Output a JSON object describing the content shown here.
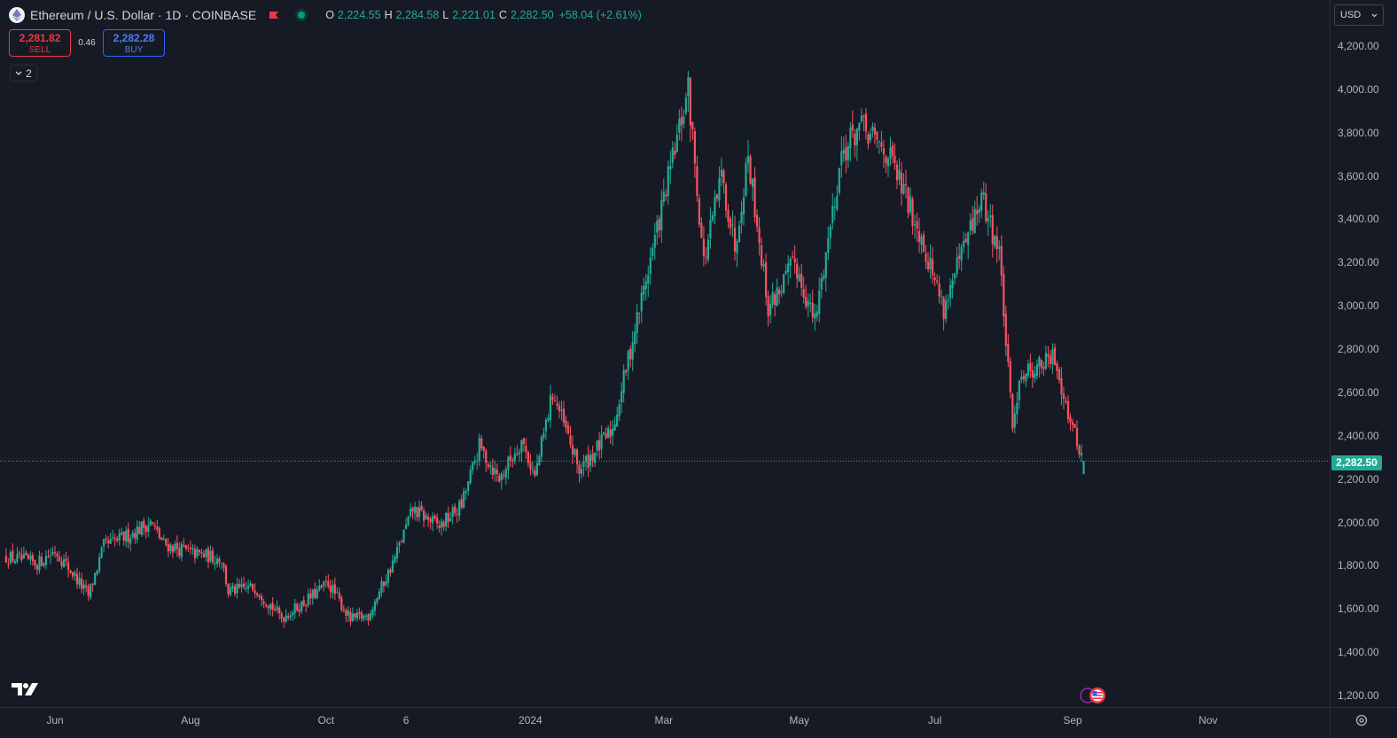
{
  "header": {
    "symbol_title": "Ethereum / U.S. Dollar · 1D · COINBASE",
    "symbol_icon": "ethereum-icon",
    "ohlc": {
      "o_label": "O",
      "o_value": "2,224.55",
      "h_label": "H",
      "h_value": "2,284.58",
      "l_label": "L",
      "l_value": "2,221.01",
      "c_label": "C",
      "c_value": "2,282.50",
      "change": "+58.04 (+2.61%)"
    }
  },
  "trade": {
    "sell_price": "2,281.82",
    "sell_label": "SELL",
    "spread": "0.46",
    "buy_price": "2,282.28",
    "buy_label": "BUY"
  },
  "indicators_toggle": {
    "count": "2"
  },
  "currency": "USD",
  "last_price_label": "2,282.50",
  "colors": {
    "background": "#161a25",
    "up": "#22ab94",
    "down": "#f7525f",
    "sell": "#f23645",
    "buy": "#2962ff",
    "grid": "#2a2e39"
  },
  "chart_data": {
    "type": "candlestick",
    "title": "Ethereum / U.S. Dollar · 1D · COINBASE",
    "xlabel": "",
    "ylabel": "",
    "currency": "USD",
    "ylim": [
      1150,
      4300
    ],
    "x_start": "2023-05-10",
    "x_end": "2024-11-30",
    "last_close": 2282.5,
    "y_ticks": [
      1200,
      1400,
      1600,
      1800,
      2000,
      2200,
      2400,
      2600,
      2800,
      3000,
      3200,
      3400,
      3600,
      3800,
      4000,
      4200
    ],
    "y_tick_labels": [
      "1,200.00",
      "1,400.00",
      "1,600.00",
      "1,800.00",
      "2,000.00",
      "2,200.00",
      "2,400.00",
      "2,600.00",
      "2,800.00",
      "3,000.00",
      "3,200.00",
      "3,400.00",
      "3,600.00",
      "3,800.00",
      "4,000.00",
      "4,200.00"
    ],
    "x_ticks": [
      {
        "date": "2023-06-01",
        "label": "Jun"
      },
      {
        "date": "2023-08-01",
        "label": "Aug"
      },
      {
        "date": "2023-10-01",
        "label": "Oct"
      },
      {
        "date": "2023-11-06",
        "label": "6"
      },
      {
        "date": "2024-01-01",
        "label": "2024"
      },
      {
        "date": "2024-03-01",
        "label": "Mar"
      },
      {
        "date": "2024-05-01",
        "label": "May"
      },
      {
        "date": "2024-07-01",
        "label": "Jul"
      },
      {
        "date": "2024-09-01",
        "label": "Sep"
      },
      {
        "date": "2024-11-01",
        "label": "Nov"
      }
    ],
    "grid": false,
    "legend": "none",
    "price_path": [
      {
        "date": "2023-05-10",
        "close": 1840
      },
      {
        "date": "2023-05-24",
        "close": 1810
      },
      {
        "date": "2023-06-01",
        "close": 1870
      },
      {
        "date": "2023-06-10",
        "close": 1750
      },
      {
        "date": "2023-06-16",
        "close": 1660
      },
      {
        "date": "2023-06-23",
        "close": 1890
      },
      {
        "date": "2023-07-04",
        "close": 1940
      },
      {
        "date": "2023-07-14",
        "close": 2000
      },
      {
        "date": "2023-07-20",
        "close": 1900
      },
      {
        "date": "2023-08-01",
        "close": 1860
      },
      {
        "date": "2023-08-15",
        "close": 1830
      },
      {
        "date": "2023-08-18",
        "close": 1680
      },
      {
        "date": "2023-08-30",
        "close": 1700
      },
      {
        "date": "2023-09-11",
        "close": 1560
      },
      {
        "date": "2023-09-20",
        "close": 1620
      },
      {
        "date": "2023-10-02",
        "close": 1720
      },
      {
        "date": "2023-10-12",
        "close": 1550
      },
      {
        "date": "2023-10-20",
        "close": 1570
      },
      {
        "date": "2023-10-31",
        "close": 1810
      },
      {
        "date": "2023-11-09",
        "close": 2060
      },
      {
        "date": "2023-11-21",
        "close": 1980
      },
      {
        "date": "2023-12-01",
        "close": 2080
      },
      {
        "date": "2023-12-09",
        "close": 2350
      },
      {
        "date": "2023-12-18",
        "close": 2200
      },
      {
        "date": "2023-12-28",
        "close": 2380
      },
      {
        "date": "2024-01-03",
        "close": 2210
      },
      {
        "date": "2024-01-11",
        "close": 2600
      },
      {
        "date": "2024-01-23",
        "close": 2240
      },
      {
        "date": "2024-02-07",
        "close": 2430
      },
      {
        "date": "2024-02-15",
        "close": 2800
      },
      {
        "date": "2024-02-28",
        "close": 3400
      },
      {
        "date": "2024-03-12",
        "close": 4000
      },
      {
        "date": "2024-03-19",
        "close": 3200
      },
      {
        "date": "2024-03-27",
        "close": 3600
      },
      {
        "date": "2024-04-02",
        "close": 3280
      },
      {
        "date": "2024-04-08",
        "close": 3700
      },
      {
        "date": "2024-04-17",
        "close": 2990
      },
      {
        "date": "2024-04-29",
        "close": 3200
      },
      {
        "date": "2024-05-08",
        "close": 2920
      },
      {
        "date": "2024-05-20",
        "close": 3700
      },
      {
        "date": "2024-05-28",
        "close": 3830
      },
      {
        "date": "2024-06-10",
        "close": 3700
      },
      {
        "date": "2024-06-24",
        "close": 3350
      },
      {
        "date": "2024-07-05",
        "close": 2990
      },
      {
        "date": "2024-07-22",
        "close": 3500
      },
      {
        "date": "2024-07-30",
        "close": 3250
      },
      {
        "date": "2024-08-05",
        "close": 2420
      },
      {
        "date": "2024-08-08",
        "close": 2680
      },
      {
        "date": "2024-08-24",
        "close": 2760
      },
      {
        "date": "2024-09-01",
        "close": 2430
      },
      {
        "date": "2024-09-06",
        "close": 2282.5
      }
    ]
  }
}
